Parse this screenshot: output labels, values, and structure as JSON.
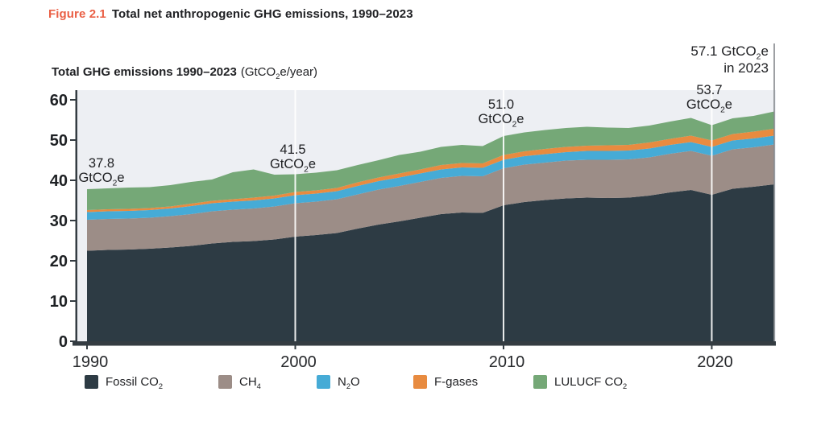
{
  "figure_caption": {
    "label": "Figure 2.1",
    "title": "Total net anthropogenic GHG emissions, 1990–2023"
  },
  "chart_header": {
    "title": "Total GHG emissions 1990–2023",
    "unit": [
      {
        "t": "(GtCO"
      },
      {
        "t": "2",
        "sub": true
      },
      {
        "t": "e/year)"
      }
    ]
  },
  "chart_data": {
    "type": "area",
    "stacked": true,
    "title": "Total GHG emissions 1990–2023 (GtCO2e/year)",
    "xlabel": "",
    "ylabel": "GtCO2e/year",
    "x_years": [
      1990,
      1991,
      1992,
      1993,
      1994,
      1995,
      1996,
      1997,
      1998,
      1999,
      2000,
      2001,
      2002,
      2003,
      2004,
      2005,
      2006,
      2007,
      2008,
      2009,
      2010,
      2011,
      2012,
      2013,
      2014,
      2015,
      2016,
      2017,
      2018,
      2019,
      2020,
      2021,
      2022,
      2023
    ],
    "series": [
      {
        "name": "Fossil CO2",
        "color": "#2d3b44",
        "values": [
          22.5,
          22.7,
          22.8,
          23.0,
          23.3,
          23.7,
          24.3,
          24.7,
          24.9,
          25.3,
          26.0,
          26.4,
          26.9,
          28.0,
          29.0,
          29.8,
          30.7,
          31.6,
          32.0,
          31.9,
          33.8,
          34.6,
          35.1,
          35.5,
          35.7,
          35.6,
          35.7,
          36.2,
          37.0,
          37.6,
          36.4,
          37.9,
          38.4,
          39.0
        ]
      },
      {
        "name": "CH4",
        "color": "#9c8d87",
        "values": [
          7.7,
          7.7,
          7.7,
          7.7,
          7.8,
          7.9,
          8.0,
          8.0,
          8.1,
          8.2,
          8.3,
          8.3,
          8.4,
          8.5,
          8.7,
          8.8,
          8.9,
          9.0,
          9.1,
          9.1,
          9.2,
          9.3,
          9.3,
          9.4,
          9.4,
          9.5,
          9.5,
          9.5,
          9.6,
          9.7,
          9.7,
          9.8,
          9.8,
          9.9
        ]
      },
      {
        "name": "N2O",
        "color": "#46abd6",
        "values": [
          1.9,
          1.9,
          1.9,
          1.9,
          1.9,
          2.0,
          2.0,
          2.0,
          2.0,
          2.0,
          2.0,
          2.0,
          2.0,
          2.1,
          2.1,
          2.1,
          2.1,
          2.1,
          2.1,
          2.1,
          2.1,
          2.1,
          2.1,
          2.1,
          2.2,
          2.2,
          2.2,
          2.2,
          2.2,
          2.2,
          2.2,
          2.2,
          2.2,
          2.2
        ]
      },
      {
        "name": "F-gases",
        "color": "#e88b40",
        "values": [
          0.5,
          0.5,
          0.5,
          0.5,
          0.5,
          0.6,
          0.6,
          0.6,
          0.7,
          0.7,
          0.8,
          0.8,
          0.8,
          0.9,
          0.9,
          1.0,
          1.0,
          1.1,
          1.1,
          1.1,
          1.2,
          1.2,
          1.3,
          1.3,
          1.3,
          1.4,
          1.4,
          1.5,
          1.5,
          1.6,
          1.6,
          1.6,
          1.7,
          1.7
        ]
      },
      {
        "name": "LULUCF CO2",
        "color": "#75a877",
        "values": [
          5.2,
          5.2,
          5.3,
          5.2,
          5.3,
          5.4,
          5.3,
          6.7,
          7.0,
          5.2,
          4.4,
          4.4,
          4.4,
          4.3,
          4.3,
          4.6,
          4.4,
          4.5,
          4.5,
          4.3,
          4.7,
          4.7,
          4.7,
          4.7,
          4.7,
          4.4,
          4.2,
          4.2,
          4.3,
          4.4,
          3.8,
          3.9,
          3.9,
          4.3
        ]
      }
    ],
    "totals_annotated": [
      {
        "year": 1990,
        "total": 37.8
      },
      {
        "year": 2000,
        "total": 41.5
      },
      {
        "year": 2010,
        "total": 51.0
      },
      {
        "year": 2020,
        "total": 53.7
      },
      {
        "year": 2023,
        "total": 57.1
      }
    ],
    "ylim": [
      0,
      62
    ],
    "yticks": [
      0,
      10,
      20,
      30,
      40,
      50,
      60
    ],
    "xticks": [
      1990,
      2000,
      2010,
      2020
    ],
    "reference_line_years": [
      2000,
      2010,
      2020
    ],
    "reference_line_2023": 2023,
    "grid": false,
    "legend_position": "bottom"
  },
  "annotations": [
    {
      "year": 1990,
      "align": "center",
      "line1": [
        {
          "t": "37.8"
        }
      ],
      "line2": [
        {
          "t": "GtCO"
        },
        {
          "t": "2",
          "sub": true
        },
        {
          "t": "e"
        }
      ]
    },
    {
      "year": 2000,
      "align": "center",
      "line1": [
        {
          "t": "41.5"
        }
      ],
      "line2": [
        {
          "t": "GtCO"
        },
        {
          "t": "2",
          "sub": true
        },
        {
          "t": "e"
        }
      ]
    },
    {
      "year": 2010,
      "align": "center",
      "line1": [
        {
          "t": "51.0"
        }
      ],
      "line2": [
        {
          "t": "GtCO"
        },
        {
          "t": "2",
          "sub": true
        },
        {
          "t": "e"
        }
      ]
    },
    {
      "year": 2020,
      "align": "center",
      "line1": [
        {
          "t": "53.7"
        }
      ],
      "line2": [
        {
          "t": "GtCO"
        },
        {
          "t": "2",
          "sub": true
        },
        {
          "t": "e"
        }
      ]
    },
    {
      "year": 2023,
      "align": "right",
      "line1": [
        {
          "t": "57.1 GtCO"
        },
        {
          "t": "2",
          "sub": true
        },
        {
          "t": "e"
        }
      ],
      "line2": [
        {
          "t": "in 2023"
        }
      ]
    }
  ],
  "legend": {
    "items": [
      {
        "name": "fossil-co2",
        "color": "#2d3b44",
        "label": [
          {
            "t": "Fossil CO"
          },
          {
            "t": "2",
            "sub": true
          }
        ]
      },
      {
        "name": "ch4",
        "color": "#9c8d87",
        "label": [
          {
            "t": "CH"
          },
          {
            "t": "4",
            "sub": true
          }
        ]
      },
      {
        "name": "n2o",
        "color": "#46abd6",
        "label": [
          {
            "t": "N"
          },
          {
            "t": "2",
            "sub": true
          },
          {
            "t": "O"
          }
        ]
      },
      {
        "name": "f-gases",
        "color": "#e88b40",
        "label": [
          {
            "t": "F-gases"
          }
        ]
      },
      {
        "name": "lulucf-co2",
        "color": "#75a877",
        "label": [
          {
            "t": "LULUCF CO"
          },
          {
            "t": "2",
            "sub": true
          }
        ]
      }
    ]
  },
  "colors": {
    "figure_label": "#ea5f45",
    "text": "#202124",
    "plot_background": "#edeff3",
    "axis": "#343c42",
    "reference_line": "#ffffff",
    "reference_line_2023": "#85898d"
  }
}
